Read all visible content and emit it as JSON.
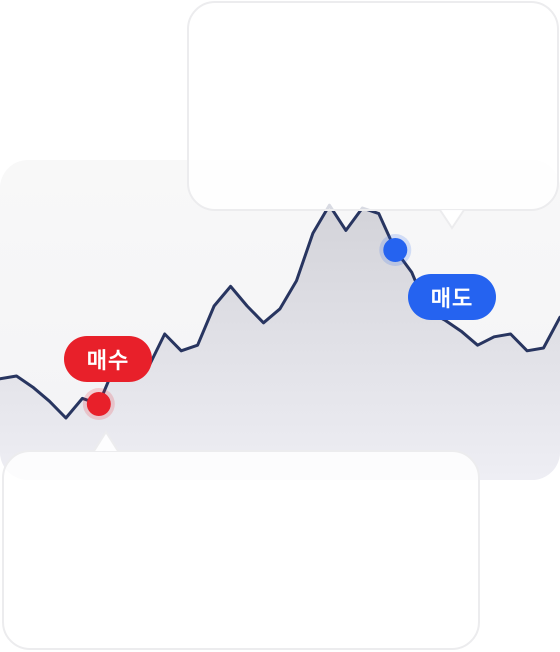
{
  "labels": {
    "buy": "매수",
    "sell": "매도"
  },
  "colors": {
    "line": "#283560",
    "buy": "#e8202a",
    "sell": "#2563f0",
    "area_top": "#d3d3d9",
    "area_bottom": "#eeeef4"
  },
  "chart_data": {
    "type": "line",
    "x": [
      0,
      1,
      2,
      3,
      4,
      5,
      6,
      7,
      8,
      9,
      10,
      11,
      12,
      13,
      14,
      15,
      16,
      17,
      18,
      19,
      20,
      21,
      22,
      23,
      24,
      25,
      26,
      27,
      28,
      29,
      30,
      31,
      32,
      33,
      34
    ],
    "series": [
      {
        "values": [
          29,
          30,
          26,
          21,
          15,
          22,
          20,
          34,
          37,
          33,
          45,
          39,
          41,
          55,
          62,
          55,
          49,
          54,
          64,
          81,
          91,
          82,
          90,
          88,
          75,
          67,
          53,
          50,
          46,
          41,
          44,
          45,
          39,
          40,
          51
        ]
      }
    ],
    "ylim": [
      0,
      100
    ],
    "markers": [
      {
        "label": "매수",
        "x": 6,
        "y": 20
      },
      {
        "label": "매도",
        "x": 24,
        "y": 75
      }
    ]
  }
}
